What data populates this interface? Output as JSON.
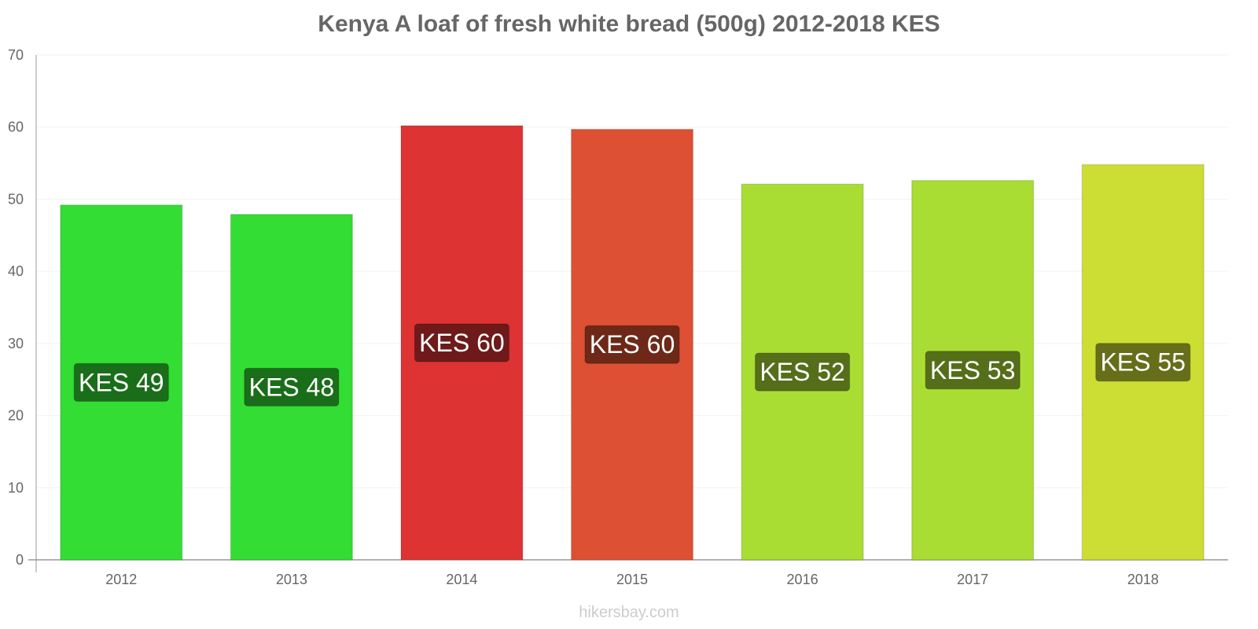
{
  "chart_data": {
    "type": "bar",
    "title": "Kenya A loaf of fresh white bread (500g) 2012-2018 KES",
    "xlabel": "",
    "ylabel": "",
    "categories": [
      "2012",
      "2013",
      "2014",
      "2015",
      "2016",
      "2017",
      "2018"
    ],
    "values": [
      49.2,
      47.9,
      60.2,
      59.7,
      52.1,
      52.6,
      54.8
    ],
    "data_labels": [
      "KES 49",
      "KES 48",
      "KES 60",
      "KES 60",
      "KES 52",
      "KES 53",
      "KES 55"
    ],
    "ylim": [
      0,
      70
    ],
    "yticks": [
      0,
      10,
      20,
      30,
      40,
      50,
      60,
      70
    ],
    "grid": true,
    "legend": "none",
    "bar_colors": [
      "#33dd33",
      "#33dd33",
      "#dd3333",
      "#dd5033",
      "#aadd33",
      "#aadd33",
      "#ccdd33"
    ],
    "label_bg_colors": [
      "#1a6e1a",
      "#1a6e1a",
      "#6e1a1a",
      "#6e2818",
      "#556e1a",
      "#556e1a",
      "#666e1a"
    ]
  },
  "watermark": "hikersbay.com"
}
